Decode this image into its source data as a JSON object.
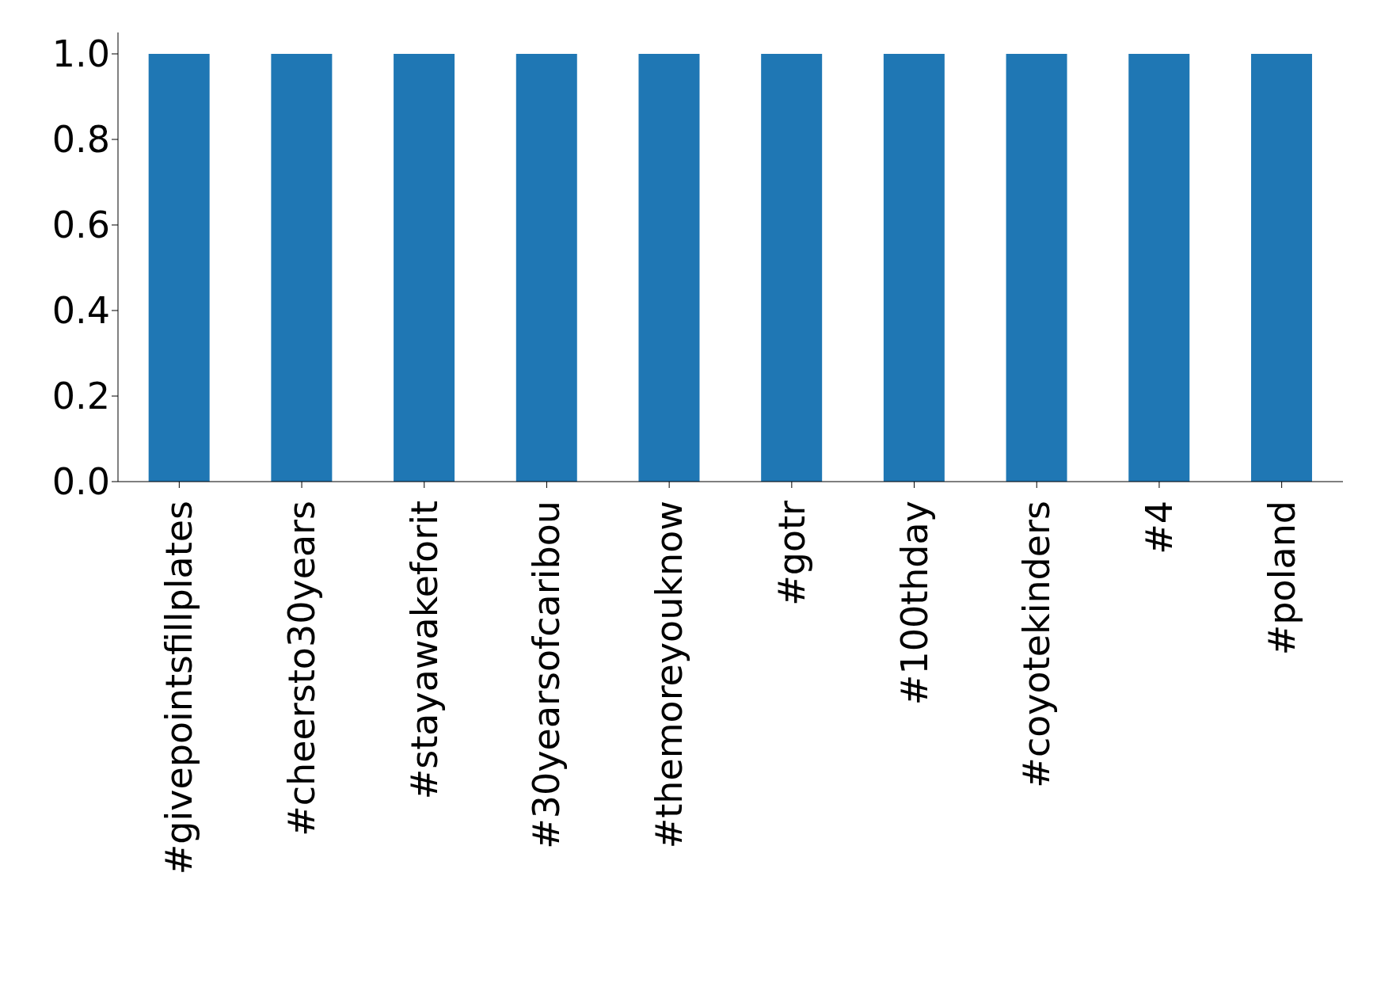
{
  "chart_data": {
    "type": "bar",
    "categories": [
      "#givepointsfillplates",
      "#cheersto30years",
      "#stayawakeforit",
      "#30yearsofcaribou",
      "#themoreyouknow",
      "#gotr",
      "#100thday",
      "#coyotekinders",
      "#4",
      "#poland"
    ],
    "values": [
      1,
      1,
      1,
      1,
      1,
      1,
      1,
      1,
      1,
      1
    ],
    "color": "#1f77b4",
    "ylim": [
      0,
      1.05
    ],
    "yticks": [
      {
        "value": 0,
        "label": "0.0"
      },
      {
        "value": 0.2,
        "label": "0.2"
      },
      {
        "value": 0.4,
        "label": "0.4"
      },
      {
        "value": 0.6,
        "label": "0.6"
      },
      {
        "value": 0.8,
        "label": "0.8"
      },
      {
        "value": 1,
        "label": "1.0"
      }
    ],
    "grid": false,
    "legend": false
  }
}
